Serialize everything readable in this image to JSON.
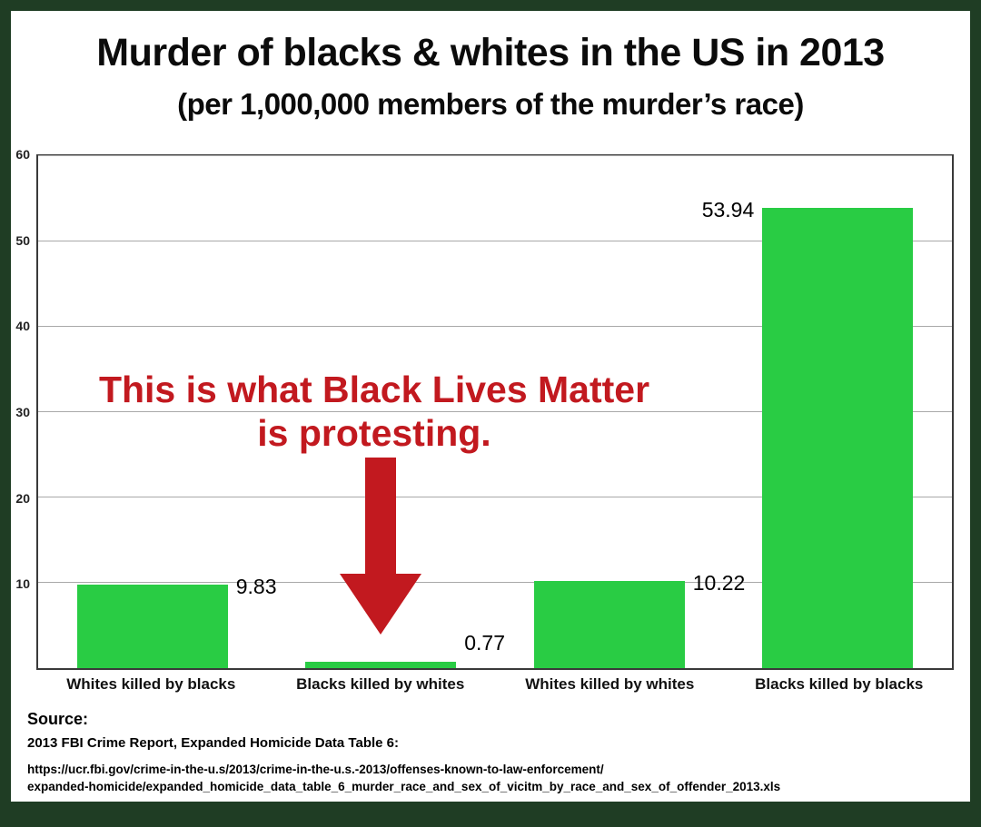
{
  "title": "Murder of blacks & whites in the US in 2013",
  "subtitle": "(per 1,000,000 members of the murder’s race)",
  "chart_data": {
    "type": "bar",
    "categories": [
      "Whites killed by blacks",
      "Blacks killed by whites",
      "Whites killed by whites",
      "Blacks killed by blacks"
    ],
    "values": [
      9.83,
      0.77,
      10.22,
      53.94
    ],
    "value_labels": [
      "9.83",
      "0.77",
      "10.22",
      "53.94"
    ],
    "value_label_side": [
      "right",
      "right",
      "right",
      "left"
    ],
    "title": "Murder of blacks & whites in the US in 2013 (per 1,000,000 members of the murder’s race)",
    "xlabel": "",
    "ylabel": "",
    "ylim": [
      0,
      60
    ],
    "yticks": [
      10,
      20,
      30,
      40,
      50,
      60
    ],
    "grid": true,
    "legend": false,
    "bar_color": "#29cc44"
  },
  "annotation": {
    "line1": "This is what Black Lives Matter",
    "line2": "is protesting.",
    "color": "#c2191f",
    "arrow_icon": "down-arrow"
  },
  "source": {
    "heading": "Source:",
    "reference": "2013 FBI Crime Report, Expanded Homicide Data Table 6:",
    "url_line1": "https://ucr.fbi.gov/crime-in-the-u.s/2013/crime-in-the-u.s.-2013/offenses-known-to-law-enforcement/",
    "url_line2": "expanded-homicide/expanded_homicide_data_table_6_murder_race_and_sex_of_vicitm_by_race_and_sex_of_offender_2013.xls"
  },
  "colors": {
    "frame_green": "#1f3d24",
    "bar_green": "#29cc44",
    "annotation_red": "#c2191f",
    "gridline_gray": "#a9a9a9"
  }
}
